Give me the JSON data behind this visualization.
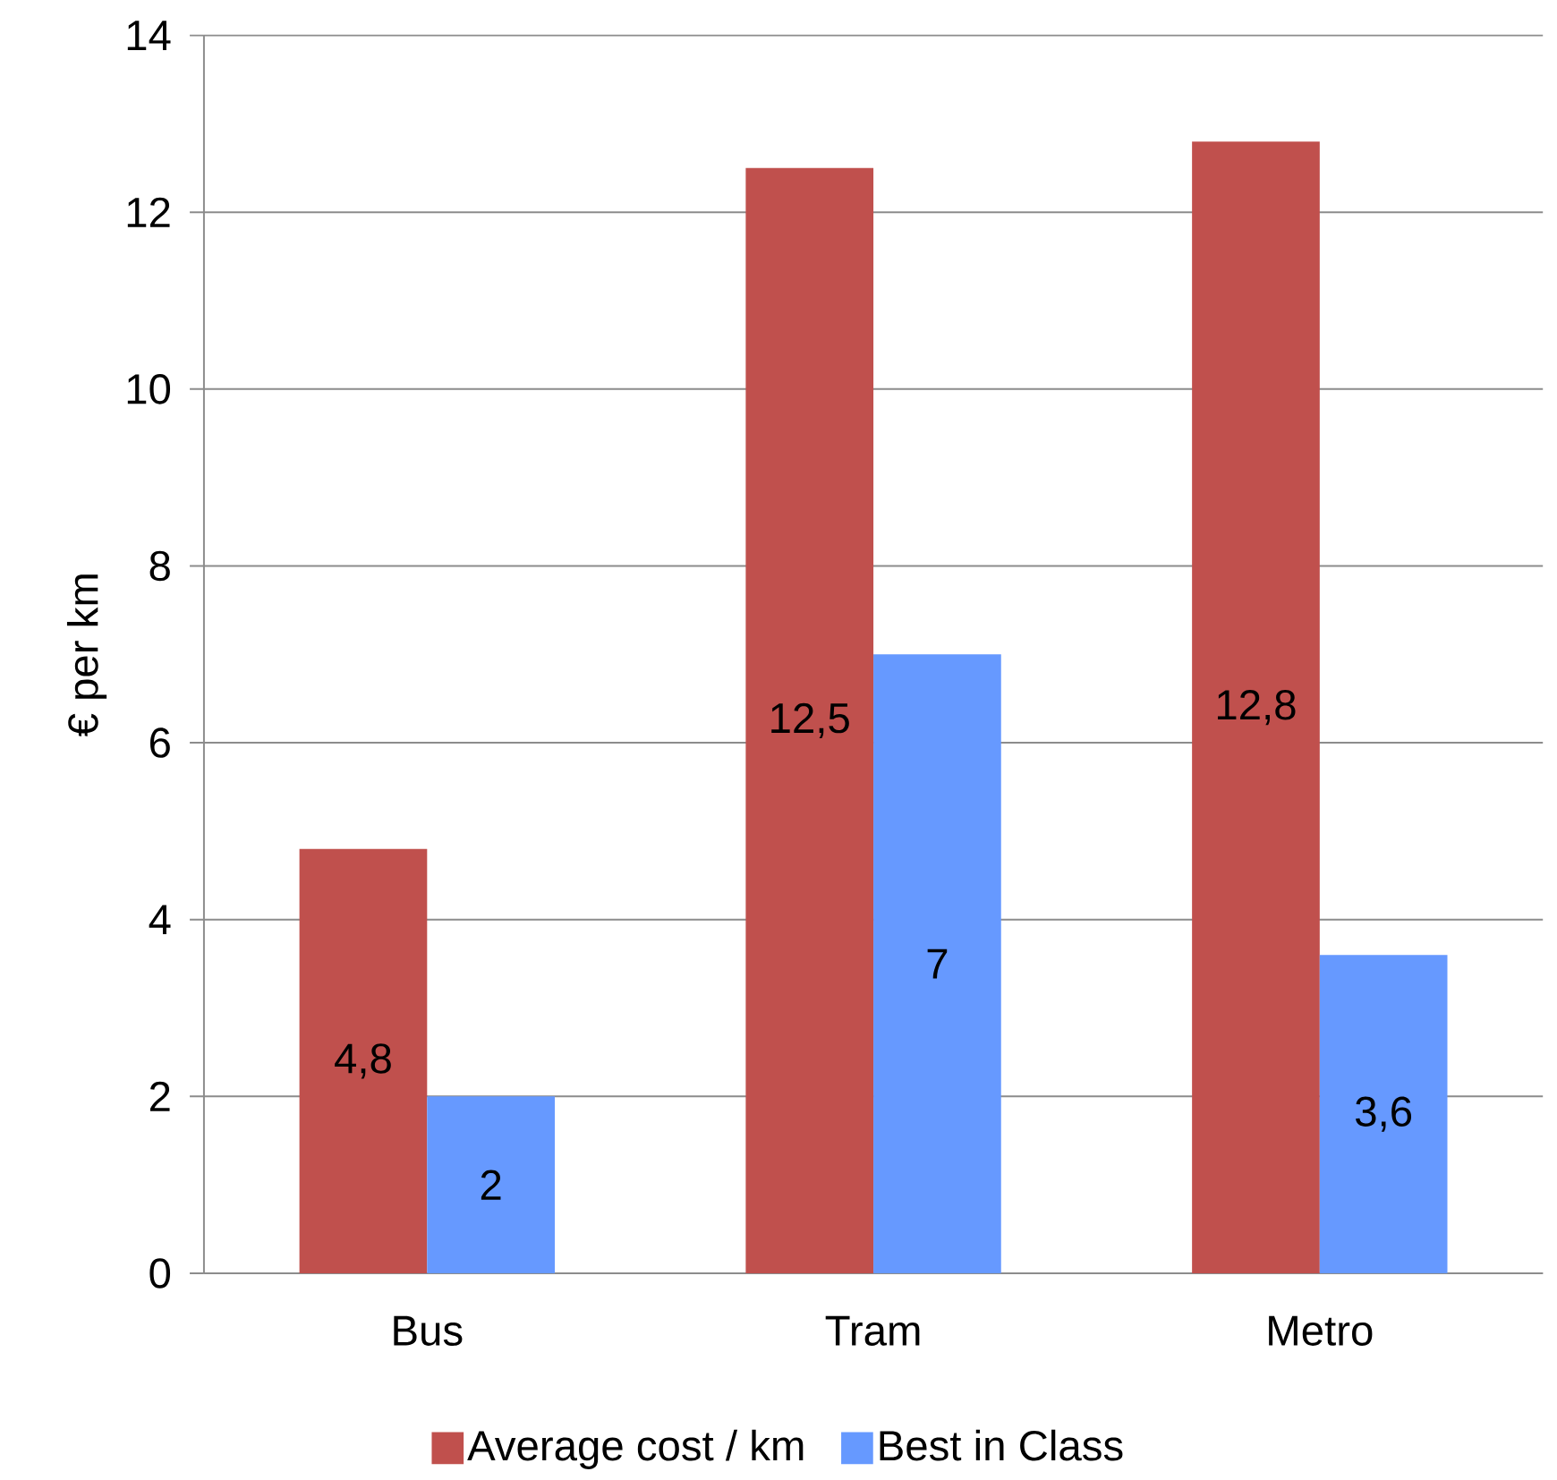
{
  "chart_data": {
    "type": "bar",
    "ylabel": "€ per km",
    "categories": [
      "Bus",
      "Tram",
      "Metro"
    ],
    "series": [
      {
        "name": "Average cost / km",
        "color": "#c0504d",
        "values": [
          4.8,
          12.5,
          12.8
        ],
        "value_labels": [
          "4,8",
          "12,5",
          "12,8"
        ]
      },
      {
        "name": "Best in Class",
        "color": "#6699ff",
        "values": [
          2,
          7,
          3.6
        ],
        "value_labels": [
          "2",
          "7",
          "3,6"
        ]
      }
    ],
    "ylim": [
      0,
      14
    ],
    "yticks": [
      0,
      2,
      4,
      6,
      8,
      10,
      12,
      14
    ],
    "grid": "y",
    "legend": "bottom"
  }
}
